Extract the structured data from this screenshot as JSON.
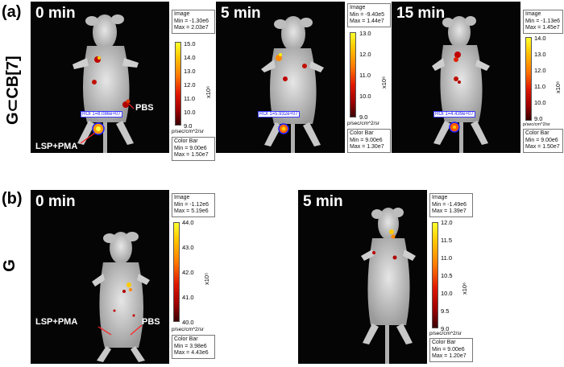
{
  "labels": {
    "a": "(a)",
    "b": "(b)",
    "row_a": "G⊂CB[7]",
    "row_b": "G"
  },
  "unit": "p/sec/cm^2/sr",
  "image_heading": "Image",
  "colorbar_heading": "Color Bar",
  "annotations": {
    "lsp": "LSP+PMA",
    "pbs": "PBS"
  },
  "panels": {
    "a1": {
      "time": "0 min",
      "min": "Min = -1.30e6",
      "max": "Max = 2.03e7",
      "ticks": [
        "15.0",
        "14.0",
        "13.0",
        "12.0",
        "11.0",
        "10.0",
        "9.0"
      ],
      "sci": "x10⁶",
      "roi": "ROI 1=8.086e+07",
      "cb_min": "Min = 9.00e6",
      "cb_max": "Max = 1.50e7"
    },
    "a2": {
      "time": "5 min",
      "min": "Min = -9.40e5",
      "max": "Max = 1.44e7",
      "ticks": [
        "13.0",
        "12.0",
        "11.0",
        "10.0",
        "9.0"
      ],
      "sci": "x10⁶",
      "roi": "ROI 1=5.932e+07",
      "cb_min": "Min = 9.00e6",
      "cb_max": "Max = 1.30e7"
    },
    "a3": {
      "time": "15 min",
      "min": "Min = -1.13e6",
      "max": "Max = 1.45e7",
      "ticks": [
        "14.0",
        "13.0",
        "12.0",
        "11.0",
        "10.0",
        "9.0"
      ],
      "sci": "x10⁶",
      "roi": "ROI 1=4.439e+07",
      "cb_min": "Min = 9.00e6",
      "cb_max": "Max = 1.50e7"
    },
    "b1": {
      "time": "0 min",
      "min": "Min = -1.12e6",
      "max": "Max = 5.19e6",
      "ticks": [
        "44.0",
        "43.0",
        "42.0",
        "41.0",
        "40.0"
      ],
      "sci": "x10⁵",
      "cb_min": "Min = 3.98e6",
      "cb_max": "Max = 4.43e6"
    },
    "b2": {
      "time": "5 min",
      "min": "Min = -1.49e6",
      "max": "Max = 1.39e7",
      "ticks": [
        "12.0",
        "11.5",
        "11.0",
        "10.5",
        "10.0",
        "9.5",
        "9.0"
      ],
      "sci": "x10⁶",
      "cb_min": "Min = 9.00e6",
      "cb_max": "Max = 1.20e7"
    }
  }
}
